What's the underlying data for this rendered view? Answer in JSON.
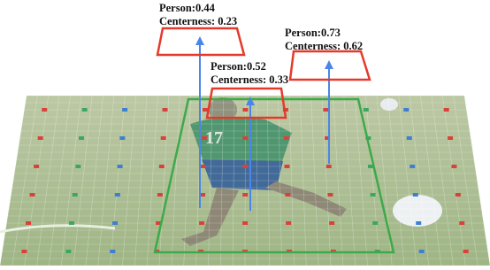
{
  "boxes": [
    {
      "label": "Person:0.44",
      "centerness": "Centerness: 0.23"
    },
    {
      "label": "Person:0.52",
      "centerness": "Centerness: 0.33"
    },
    {
      "label": "Person:0.73",
      "centerness": "Centerness: 0.62"
    }
  ]
}
